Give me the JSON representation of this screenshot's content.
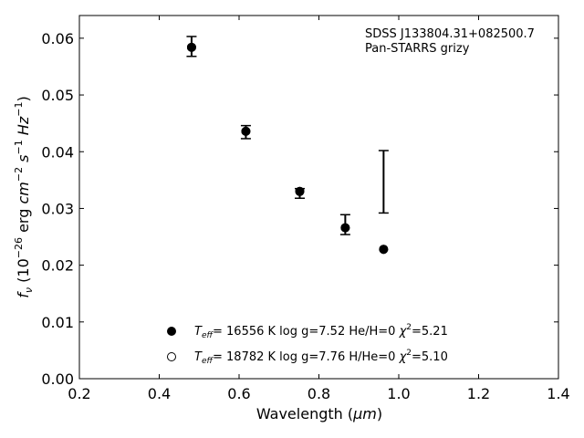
{
  "chart_data": {
    "type": "scatter",
    "annotation_lines": [
      "SDSS J133804.31+082500.7",
      "Pan-STARRS grizy"
    ],
    "xlabel_main": "Wavelength (",
    "xlabel_unit": "μm",
    "xlabel_close": ")",
    "ylabel": {
      "f": "f",
      "nu": "ν",
      "open": " (10",
      "exp1": "−26",
      "erg": " erg ",
      "cm": "cm",
      "exp2": "−2",
      "s": " s",
      "exp3": "−1",
      "hz": " Hz",
      "exp4": "−1",
      "close": ")"
    },
    "xlim": [
      0.2,
      1.4
    ],
    "ylim": [
      0.0,
      0.064
    ],
    "xticks": [
      0.2,
      0.4,
      0.6,
      0.8,
      1.0,
      1.2,
      1.4
    ],
    "xtick_labels": [
      "0.2",
      "0.4",
      "0.6",
      "0.8",
      "1.0",
      "1.2",
      "1.4"
    ],
    "yticks": [
      0.0,
      0.01,
      0.02,
      0.03,
      0.04,
      0.05,
      0.06
    ],
    "ytick_labels": [
      "0.00",
      "0.01",
      "0.02",
      "0.03",
      "0.04",
      "0.05",
      "0.06"
    ],
    "grid": false,
    "observed": {
      "x": [
        0.481,
        0.617,
        0.752,
        0.866,
        0.962
      ],
      "y_low": [
        0.0568,
        0.0423,
        0.0318,
        0.0254,
        0.0292
      ],
      "y_high": [
        0.0603,
        0.0446,
        0.0335,
        0.0289,
        0.0402
      ]
    },
    "series": [
      {
        "marker": "filled",
        "x": [
          0.481,
          0.617,
          0.752,
          0.866,
          0.962
        ],
        "y": [
          0.0584,
          0.0436,
          0.033,
          0.0266,
          0.0228
        ]
      },
      {
        "marker": "open",
        "x": [
          0.481,
          0.617,
          0.752,
          0.866,
          0.962
        ],
        "y": [
          0.0584,
          0.0436,
          0.033,
          0.0266,
          0.0228
        ]
      }
    ],
    "legend_placement": "lower-center",
    "legend": [
      {
        "marker": "filled",
        "T": "T",
        "eff": "eff",
        "text": "= 16556 K  log g=7.52  He/H=0  ",
        "chi": "χ",
        "two": "2",
        "chi_val": "=5.21"
      },
      {
        "marker": "open",
        "T": "T",
        "eff": "eff",
        "text": "= 18782 K  log g=7.76  H/He=0  ",
        "chi": "χ",
        "two": "2",
        "chi_val": "=5.10"
      }
    ]
  }
}
